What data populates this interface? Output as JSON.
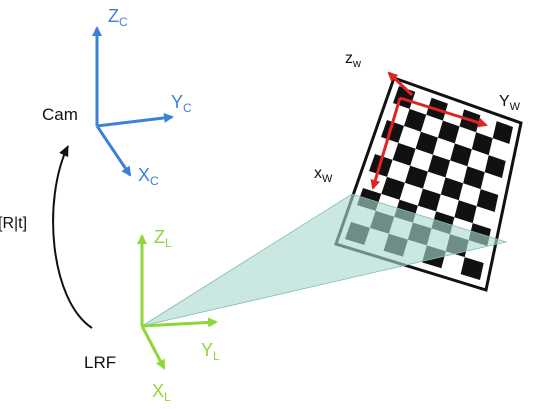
{
  "colors": {
    "camera_axes": "#3b82d6",
    "lrf_axes": "#8fd63a",
    "world_axes": "#e02424",
    "scan_plane": "#a9d9cf",
    "checker_dark": "#111111",
    "checker_light": "#ffffff",
    "text": "#111111"
  },
  "camera": {
    "name": "Cam",
    "axes": {
      "z": {
        "main": "Z",
        "sub": "C"
      },
      "y": {
        "main": "Y",
        "sub": "C"
      },
      "x": {
        "main": "X",
        "sub": "C"
      }
    }
  },
  "lrf": {
    "name": "LRF",
    "axes": {
      "z": {
        "main": "Z",
        "sub": "L"
      },
      "y": {
        "main": "Y",
        "sub": "L"
      },
      "x": {
        "main": "X",
        "sub": "L"
      }
    }
  },
  "transform": {
    "label": "[R|t]"
  },
  "world": {
    "axes": {
      "z": {
        "main": "z",
        "sub": "w"
      },
      "y": {
        "main": "Y",
        "sub": "W"
      },
      "x": {
        "main": "x",
        "sub": "W"
      }
    }
  },
  "checkerboard": {
    "rows": 9,
    "cols": 7
  }
}
